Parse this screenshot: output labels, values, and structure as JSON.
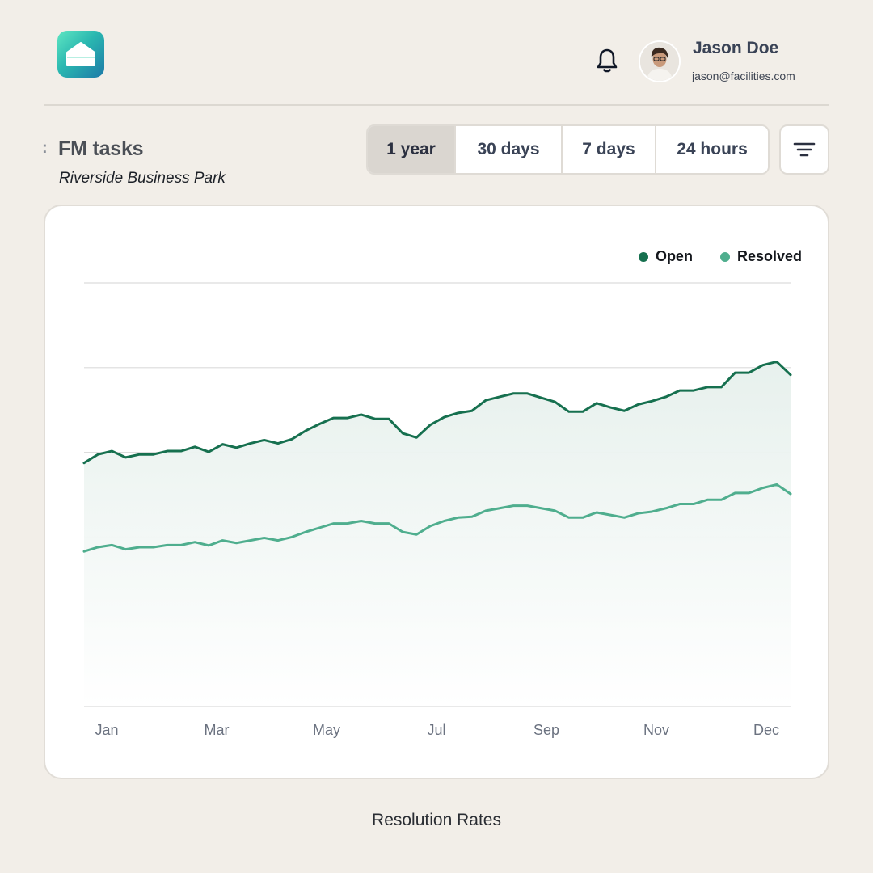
{
  "header": {
    "logo_icon": "home-icon",
    "notification_icon": "bell-icon",
    "user": {
      "name": "Jason Doe",
      "email": "jason@facilities.com",
      "avatar_icon": "user-avatar"
    }
  },
  "page": {
    "title": "FM tasks",
    "subtitle": "Riverside Business Park"
  },
  "range_tabs": [
    {
      "label": "1 year",
      "active": true
    },
    {
      "label": "30 days",
      "active": false
    },
    {
      "label": "7 days",
      "active": false
    },
    {
      "label": "24 hours",
      "active": false
    }
  ],
  "filter_icon": "filter-icon",
  "caption": "Resolution Rates",
  "colors": {
    "open": "#16704f",
    "resolved": "#4fae8e",
    "background": "#f2eee8"
  },
  "chart_data": {
    "type": "area",
    "x_tick_labels": [
      "Jan",
      "Mar",
      "May",
      "Jul",
      "Sep",
      "Nov",
      "Dec"
    ],
    "y_gridlines": 6,
    "ylim": [
      0,
      100
    ],
    "grid": true,
    "legend_position": "top-right",
    "x": [
      0,
      1,
      2,
      3,
      4,
      5,
      6,
      7,
      8,
      9,
      10,
      11,
      12,
      13,
      14,
      15,
      16,
      17,
      18,
      19,
      20,
      21,
      22,
      23,
      24,
      25,
      26,
      27,
      28,
      29,
      30,
      31,
      32,
      33,
      34,
      35,
      36,
      37,
      38,
      39,
      40,
      41,
      42,
      43,
      44,
      45,
      46,
      47,
      48,
      49,
      50,
      51
    ],
    "series": [
      {
        "name": "Open",
        "color": "#16704f",
        "values": [
          57.5,
          59.5,
          60.3,
          58.8,
          59.5,
          59.5,
          60.3,
          60.3,
          61.3,
          60.1,
          61.9,
          61.1,
          62.1,
          62.9,
          62.1,
          63.1,
          65.1,
          66.7,
          68.1,
          68.1,
          68.9,
          67.9,
          67.9,
          64.5,
          63.5,
          66.5,
          68.3,
          69.3,
          69.8,
          72.3,
          73.1,
          73.9,
          73.9,
          72.9,
          71.9,
          69.6,
          69.6,
          71.6,
          70.6,
          69.8,
          71.3,
          72.1,
          73.1,
          74.6,
          74.6,
          75.4,
          75.4,
          78.8,
          78.8,
          80.6,
          81.4,
          78.3
        ],
        "ui_note_ignore": null
      },
      {
        "name": "Resolved",
        "color": "#4fae8e",
        "values": [
          36.6,
          37.6,
          38.1,
          37.1,
          37.6,
          37.6,
          38.1,
          38.1,
          38.8,
          38.0,
          39.2,
          38.6,
          39.2,
          39.8,
          39.2,
          40.0,
          41.2,
          42.2,
          43.2,
          43.2,
          43.8,
          43.2,
          43.2,
          41.2,
          40.6,
          42.6,
          43.8,
          44.6,
          44.8,
          46.2,
          46.8,
          47.4,
          47.4,
          46.8,
          46.2,
          44.6,
          44.6,
          45.8,
          45.2,
          44.6,
          45.6,
          46.0,
          46.8,
          47.8,
          47.8,
          48.8,
          48.8,
          50.4,
          50.4,
          51.6,
          52.4,
          50.2
        ]
      }
    ]
  }
}
